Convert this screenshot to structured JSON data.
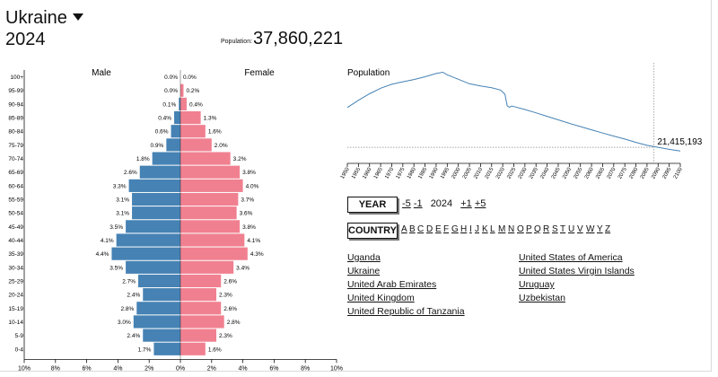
{
  "header": {
    "country": "Ukraine",
    "year": "2024",
    "population_label": "Population:",
    "population_value": "37,860,221"
  },
  "colors": {
    "male": "#4682b4",
    "female": "#f08090",
    "line": "#4682b4"
  },
  "chart_data": [
    {
      "type": "bar",
      "subtype": "population-pyramid",
      "series_labels": {
        "male": "Male",
        "female": "Female"
      },
      "categories": [
        "100+",
        "95-99",
        "90-94",
        "85-89",
        "80-84",
        "75-79",
        "70-74",
        "65-69",
        "60-64",
        "55-59",
        "50-54",
        "45-49",
        "40-44",
        "35-39",
        "30-34",
        "25-29",
        "20-24",
        "15-19",
        "10-14",
        "5-9",
        "0-4"
      ],
      "male": [
        0.0,
        0.0,
        0.1,
        0.4,
        0.6,
        0.9,
        1.8,
        2.6,
        3.3,
        3.1,
        3.1,
        3.5,
        4.1,
        4.4,
        3.5,
        2.7,
        2.4,
        2.8,
        3.0,
        2.4,
        1.7
      ],
      "female": [
        0.0,
        0.2,
        0.4,
        1.3,
        1.6,
        2.0,
        3.2,
        3.8,
        4.0,
        3.7,
        3.6,
        3.8,
        4.1,
        4.3,
        3.4,
        2.6,
        2.3,
        2.6,
        2.8,
        2.3,
        1.6
      ],
      "male_labels": [
        "0.0%",
        "0.0%",
        "0.1%",
        "0.4%",
        "0.6%",
        "0.9%",
        "1.8%",
        "2.6%",
        "3.3%",
        "3.1%",
        "3.1%",
        "3.5%",
        "4.1%",
        "4.4%",
        "3.5%",
        "2.7%",
        "2.4%",
        "2.8%",
        "3.0%",
        "2.4%",
        "1.7%"
      ],
      "female_labels": [
        "0.0%",
        "0.2%",
        "0.4%",
        "1.3%",
        "1.6%",
        "2.0%",
        "3.2%",
        "3.8%",
        "4.0%",
        "3.7%",
        "3.6%",
        "3.8%",
        "4.1%",
        "4.3%",
        "3.4%",
        "2.6%",
        "2.3%",
        "2.6%",
        "2.8%",
        "2.3%",
        "1.6%"
      ],
      "x_range": [
        -10,
        10
      ],
      "x_ticks": [
        -10,
        -8,
        -6,
        -4,
        -2,
        0,
        2,
        4,
        6,
        8,
        10
      ],
      "x_tick_labels": [
        "10%",
        "8%",
        "6%",
        "4%",
        "2%",
        "0%",
        "2%",
        "4%",
        "6%",
        "8%",
        "10%"
      ]
    },
    {
      "type": "line",
      "title": "Population",
      "x": [
        1950,
        1955,
        1960,
        1965,
        1970,
        1975,
        1980,
        1985,
        1990,
        1993,
        1995,
        2000,
        2005,
        2010,
        2015,
        2019,
        2021,
        2022,
        2023,
        2024,
        2025,
        2030,
        2035,
        2040,
        2045,
        2050,
        2055,
        2060,
        2065,
        2070,
        2075,
        2080,
        2085,
        2090,
        2095,
        2100
      ],
      "y": [
        37.3,
        40.2,
        42.8,
        45.0,
        46.6,
        47.6,
        48.5,
        49.6,
        50.9,
        51.4,
        50.4,
        48.6,
        46.8,
        45.9,
        45.2,
        44.3,
        42.6,
        38.0,
        37.4,
        37.9,
        37.7,
        36.5,
        35.2,
        33.8,
        32.4,
        31.0,
        29.7,
        28.4,
        27.1,
        25.9,
        24.7,
        23.4,
        22.2,
        21.4,
        20.6,
        19.9
      ],
      "x_ticks": [
        1950,
        1955,
        1960,
        1965,
        1970,
        1975,
        1980,
        1985,
        1990,
        1995,
        2000,
        2005,
        2010,
        2015,
        2020,
        2025,
        2030,
        2035,
        2040,
        2045,
        2050,
        2055,
        2060,
        2065,
        2070,
        2075,
        2080,
        2085,
        2090,
        2095,
        2100
      ],
      "y_range_millions": [
        15,
        53
      ],
      "marker": {
        "x": 2088,
        "value_millions": 21.415193,
        "label": "21,415,193"
      }
    }
  ],
  "controls": {
    "year_button": "YEAR",
    "minus5": "-5",
    "minus1": "-1",
    "current_year": "2024",
    "plus1": "+1",
    "plus5": "+5",
    "country_button": "COUNTRY",
    "letters": [
      "A",
      "B",
      "C",
      "D",
      "E",
      "F",
      "G",
      "H",
      "I",
      "J",
      "K",
      "L",
      "M",
      "N",
      "O",
      "P",
      "Q",
      "R",
      "S",
      "T",
      "U",
      "V",
      "W",
      "Y",
      "Z"
    ]
  },
  "countries": {
    "col1": [
      "Uganda",
      "Ukraine",
      "United Arab Emirates",
      "United Kingdom",
      "United Republic of Tanzania"
    ],
    "col2": [
      "United States of America",
      "United States Virgin Islands",
      "Uruguay",
      "Uzbekistan"
    ]
  }
}
